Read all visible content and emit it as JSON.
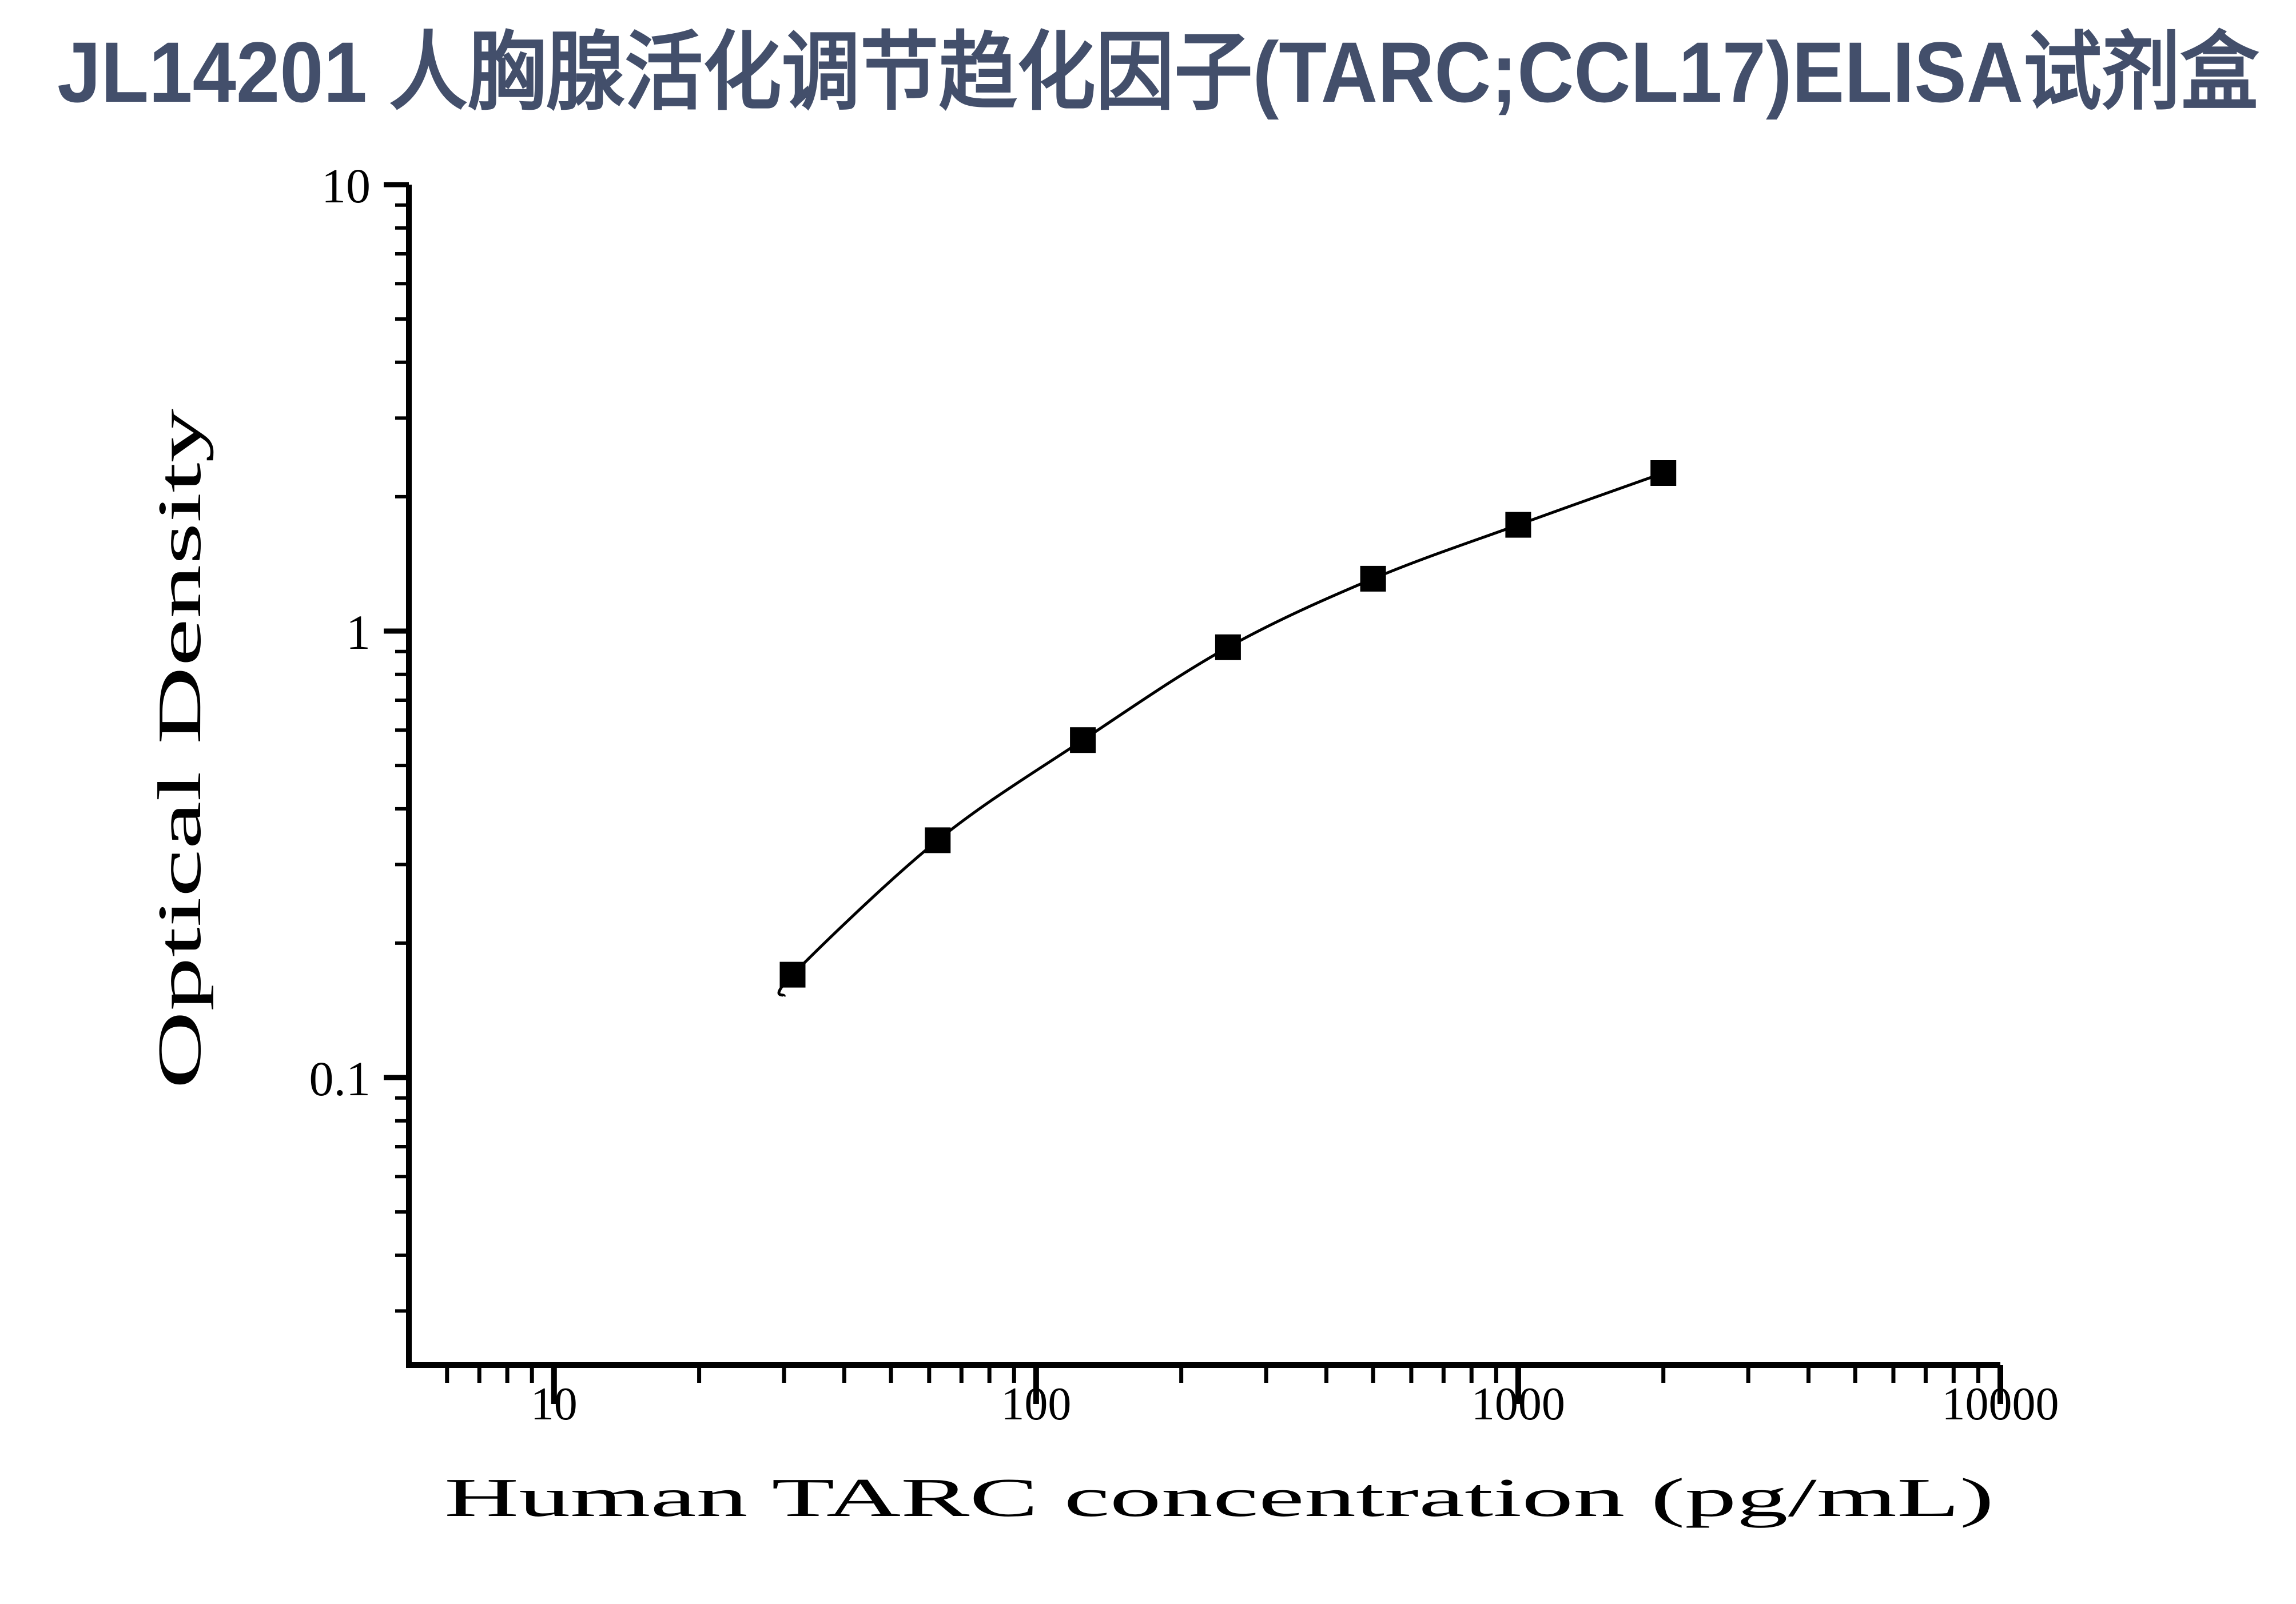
{
  "title": {
    "text": "JL14201 人胸腺活化调节趋化因子(TARC;CCL17)ELISA试剂盒",
    "color": "#434f6b"
  },
  "chart_data": {
    "type": "scatter",
    "title": "JL14201 人胸腺活化调节趋化因子(TARC;CCL17)ELISA试剂盒",
    "xlabel": "Human TARC concentration (pg/mL)",
    "ylabel": "Optical Density",
    "xscale": "log",
    "yscale": "log",
    "grid": false,
    "legend": "none",
    "xlim": [
      5,
      10000
    ],
    "ylim": [
      0.0227,
      10
    ],
    "x": [
      31.25,
      62.5,
      125,
      250,
      500,
      1000,
      2000
    ],
    "y": [
      0.17,
      0.34,
      0.57,
      0.92,
      1.31,
      1.73,
      2.26
    ],
    "curve_start": {
      "x": 30,
      "y": 0.152
    },
    "x_ticks": {
      "values": [
        10,
        100,
        1000,
        10000
      ],
      "labels": [
        "10",
        "100",
        "1000",
        "10000"
      ]
    },
    "y_ticks": {
      "values": [
        10,
        1,
        0.1
      ],
      "labels": [
        "10",
        "1",
        "0.1"
      ]
    },
    "marker": {
      "shape": "square",
      "color": "#000000"
    },
    "line_color": "#000000",
    "axis_color": "#000000"
  }
}
